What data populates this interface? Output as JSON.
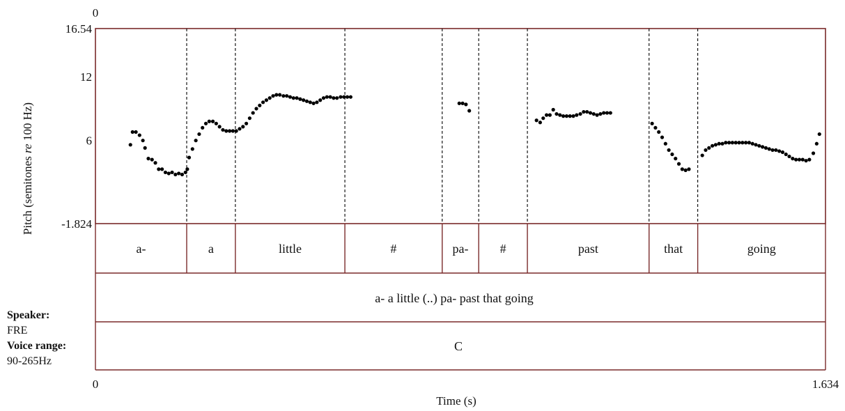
{
  "chart_data": {
    "type": "scatter",
    "xlabel": "Time (s)",
    "ylabel": "Pitch (semitones re 100 Hz)",
    "ylabel_parts": {
      "pre": "Pitch (semitones ",
      "italic": "re",
      "post": " 100 Hz)"
    },
    "xlim": [
      0,
      1.634
    ],
    "ylim": [
      -1.824,
      16.54
    ],
    "top_tick": "0",
    "x_ticks": [
      "0",
      "1.634"
    ],
    "y_ticks": [
      {
        "value": 16.54,
        "label": "16.54"
      },
      {
        "value": 12,
        "label": "12"
      },
      {
        "value": 6,
        "label": "6"
      },
      {
        "value": -1.824,
        "label": "-1.824"
      }
    ],
    "boundaries": [
      0.3,
      0.46,
      0.82,
      1.14,
      1.26,
      1.42,
      1.82,
      1.98
    ],
    "boundaries_unit": "relative to x-axis (data x = value * 1.634 / 2.4)",
    "word_tier": [
      {
        "start": 0.0,
        "end": 0.3,
        "label": "a-"
      },
      {
        "start": 0.3,
        "end": 0.46,
        "label": "a"
      },
      {
        "start": 0.46,
        "end": 0.82,
        "label": "little"
      },
      {
        "start": 0.82,
        "end": 1.14,
        "label": "#"
      },
      {
        "start": 1.14,
        "end": 1.26,
        "label": "pa-"
      },
      {
        "start": 1.26,
        "end": 1.42,
        "label": "#"
      },
      {
        "start": 1.42,
        "end": 1.82,
        "label": "past"
      },
      {
        "start": 1.82,
        "end": 1.98,
        "label": "that"
      },
      {
        "start": 1.98,
        "end": 2.4,
        "label": "going"
      }
    ],
    "utterance_tier": "a- a little (..) pa- past that going",
    "type_tier": "C",
    "series": [
      {
        "points": [
          [
            0.115,
            5.6
          ],
          [
            0.122,
            6.8
          ],
          [
            0.133,
            6.8
          ],
          [
            0.145,
            6.5
          ],
          [
            0.156,
            6.0
          ],
          [
            0.163,
            5.3
          ],
          [
            0.174,
            4.3
          ],
          [
            0.186,
            4.2
          ],
          [
            0.197,
            3.9
          ],
          [
            0.208,
            3.3
          ],
          [
            0.219,
            3.3
          ],
          [
            0.23,
            3.0
          ],
          [
            0.241,
            2.9
          ],
          [
            0.252,
            3.0
          ],
          [
            0.263,
            2.8
          ],
          [
            0.274,
            2.9
          ],
          [
            0.285,
            2.8
          ],
          [
            0.296,
            3.0
          ],
          [
            0.302,
            3.3
          ],
          [
            0.308,
            4.4
          ],
          [
            0.319,
            5.2
          ],
          [
            0.33,
            6.0
          ],
          [
            0.341,
            6.6
          ],
          [
            0.352,
            7.2
          ],
          [
            0.363,
            7.6
          ],
          [
            0.374,
            7.8
          ],
          [
            0.386,
            7.8
          ],
          [
            0.397,
            7.6
          ],
          [
            0.408,
            7.3
          ],
          [
            0.419,
            7.0
          ],
          [
            0.43,
            6.9
          ],
          [
            0.441,
            6.9
          ],
          [
            0.452,
            6.9
          ],
          [
            0.463,
            6.9
          ],
          [
            0.474,
            7.1
          ],
          [
            0.485,
            7.3
          ],
          [
            0.496,
            7.6
          ],
          [
            0.507,
            8.1
          ],
          [
            0.518,
            8.6
          ],
          [
            0.529,
            9.0
          ],
          [
            0.54,
            9.3
          ],
          [
            0.551,
            9.6
          ],
          [
            0.562,
            9.8
          ],
          [
            0.573,
            10.0
          ],
          [
            0.584,
            10.2
          ],
          [
            0.595,
            10.3
          ],
          [
            0.606,
            10.3
          ],
          [
            0.618,
            10.2
          ],
          [
            0.629,
            10.2
          ],
          [
            0.64,
            10.1
          ],
          [
            0.651,
            10.0
          ],
          [
            0.662,
            10.0
          ],
          [
            0.673,
            9.9
          ],
          [
            0.684,
            9.8
          ],
          [
            0.695,
            9.7
          ],
          [
            0.706,
            9.6
          ],
          [
            0.717,
            9.5
          ],
          [
            0.728,
            9.6
          ],
          [
            0.739,
            9.8
          ],
          [
            0.75,
            10.0
          ],
          [
            0.761,
            10.1
          ],
          [
            0.772,
            10.1
          ],
          [
            0.783,
            10.0
          ],
          [
            0.794,
            10.0
          ],
          [
            0.806,
            10.1
          ],
          [
            0.817,
            10.1
          ],
          [
            0.828,
            10.1
          ],
          [
            0.839,
            10.1
          ],
          [
            1.196,
            9.5
          ],
          [
            1.207,
            9.5
          ],
          [
            1.218,
            9.4
          ],
          [
            1.229,
            8.8
          ],
          [
            1.45,
            7.9
          ],
          [
            1.462,
            7.7
          ],
          [
            1.472,
            8.1
          ],
          [
            1.483,
            8.4
          ],
          [
            1.494,
            8.4
          ],
          [
            1.505,
            8.9
          ],
          [
            1.516,
            8.5
          ],
          [
            1.527,
            8.4
          ],
          [
            1.538,
            8.3
          ],
          [
            1.549,
            8.3
          ],
          [
            1.56,
            8.3
          ],
          [
            1.571,
            8.3
          ],
          [
            1.582,
            8.4
          ],
          [
            1.594,
            8.5
          ],
          [
            1.605,
            8.7
          ],
          [
            1.616,
            8.7
          ],
          [
            1.627,
            8.6
          ],
          [
            1.638,
            8.5
          ],
          [
            1.649,
            8.4
          ],
          [
            1.66,
            8.5
          ],
          [
            1.671,
            8.6
          ],
          [
            1.682,
            8.6
          ],
          [
            1.693,
            8.6
          ],
          [
            1.83,
            7.6
          ],
          [
            1.841,
            7.2
          ],
          [
            1.852,
            6.8
          ],
          [
            1.863,
            6.3
          ],
          [
            1.874,
            5.7
          ],
          [
            1.885,
            5.1
          ],
          [
            1.896,
            4.7
          ],
          [
            1.907,
            4.3
          ],
          [
            1.918,
            3.8
          ],
          [
            1.929,
            3.3
          ],
          [
            1.94,
            3.2
          ],
          [
            1.951,
            3.3
          ],
          [
            1.995,
            4.6
          ],
          [
            2.006,
            5.1
          ],
          [
            2.017,
            5.3
          ],
          [
            2.028,
            5.5
          ],
          [
            2.039,
            5.6
          ],
          [
            2.05,
            5.7
          ],
          [
            2.061,
            5.7
          ],
          [
            2.072,
            5.8
          ],
          [
            2.083,
            5.8
          ],
          [
            2.094,
            5.8
          ],
          [
            2.105,
            5.8
          ],
          [
            2.116,
            5.8
          ],
          [
            2.127,
            5.8
          ],
          [
            2.138,
            5.8
          ],
          [
            2.149,
            5.8
          ],
          [
            2.16,
            5.7
          ],
          [
            2.171,
            5.6
          ],
          [
            2.182,
            5.5
          ],
          [
            2.193,
            5.4
          ],
          [
            2.204,
            5.3
          ],
          [
            2.215,
            5.2
          ],
          [
            2.226,
            5.1
          ],
          [
            2.237,
            5.1
          ],
          [
            2.248,
            5.0
          ],
          [
            2.259,
            4.9
          ],
          [
            2.27,
            4.7
          ],
          [
            2.281,
            4.5
          ],
          [
            2.292,
            4.3
          ],
          [
            2.303,
            4.2
          ],
          [
            2.314,
            4.2
          ],
          [
            2.325,
            4.2
          ],
          [
            2.336,
            4.1
          ],
          [
            2.347,
            4.2
          ],
          [
            2.36,
            4.8
          ],
          [
            2.371,
            5.7
          ],
          [
            2.38,
            6.6
          ]
        ],
        "points_x_unit": "relative to x-axis (data x = value * 1.634 / 2.4)"
      }
    ]
  },
  "info_panel": {
    "speaker_label": "Speaker:",
    "speaker_value": "FRE",
    "voice_range_label": "Voice range:",
    "voice_range_value": "90-265Hz"
  }
}
